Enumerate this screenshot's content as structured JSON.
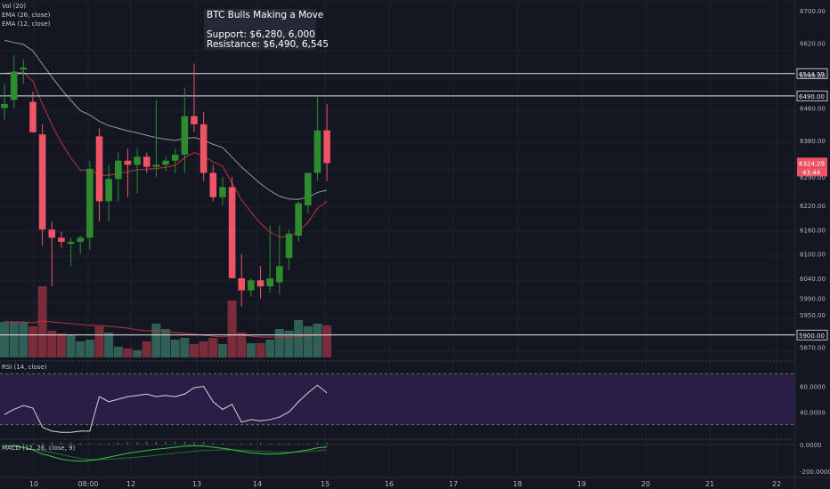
{
  "indicators": {
    "vol": "Vol (20)",
    "ema26": "EMA (26, close)",
    "ema12": "EMA (12, close)",
    "rsi": "RSI (14, close)",
    "macd": "MACD (12, 26, close, 9)"
  },
  "annotation": {
    "title": "BTC Bulls Making a Move",
    "support": "Support: $6,280, 6,000",
    "resistance": "Resistance: $6,490, 6,545"
  },
  "colors": {
    "background": "#131722",
    "up": "#2e8b2e",
    "down": "#ef5365",
    "ema26": "#9598a1",
    "ema12": "#c3323c",
    "rsi_band": "#2a1e45",
    "macd_line": "#3ec43e",
    "signal_line": "#2a6b2a"
  },
  "chart_data": [
    {
      "type": "candlestick",
      "title": "",
      "x_tick_labels": [
        "10",
        "08:00",
        "12",
        "13",
        "14",
        "15",
        "16",
        "17",
        "18",
        "19",
        "20",
        "21",
        "22"
      ],
      "y_tick_labels": [
        "6700.00",
        "6620.00",
        "6540.00",
        "6460.00",
        "6380.00",
        "6290.00",
        "6220.00",
        "6160.00",
        "6100.00",
        "6040.00",
        "5990.00",
        "5950.00",
        "5910.00",
        "5870.00"
      ],
      "ylim": [
        5860,
        6720
      ],
      "horizontal_levels": [
        {
          "value": 6544.99,
          "label": "6544.99"
        },
        {
          "value": 6490.0,
          "label": "6490.00"
        },
        {
          "value": 5900.0,
          "label": "5900.00"
        }
      ],
      "last_price": {
        "value": 6324.29,
        "label": "6324.29",
        "countdown": "43:44"
      },
      "candles": [
        {
          "o": 6460,
          "h": 6520,
          "l": 6430,
          "c": 6470
        },
        {
          "o": 6480,
          "h": 6590,
          "l": 6460,
          "c": 6550
        },
        {
          "o": 6555,
          "h": 6580,
          "l": 6520,
          "c": 6560
        },
        {
          "o": 6475,
          "h": 6500,
          "l": 6400,
          "c": 6400
        },
        {
          "o": 6395,
          "h": 6420,
          "l": 6120,
          "c": 6160
        },
        {
          "o": 6160,
          "h": 6180,
          "l": 6020,
          "c": 6140
        },
        {
          "o": 6140,
          "h": 6155,
          "l": 6115,
          "c": 6130
        },
        {
          "o": 6125,
          "h": 6140,
          "l": 6070,
          "c": 6130
        },
        {
          "o": 6130,
          "h": 6145,
          "l": 6100,
          "c": 6140
        },
        {
          "o": 6140,
          "h": 6330,
          "l": 6110,
          "c": 6310
        },
        {
          "o": 6390,
          "h": 6410,
          "l": 6180,
          "c": 6230
        },
        {
          "o": 6230,
          "h": 6320,
          "l": 6180,
          "c": 6285
        },
        {
          "o": 6285,
          "h": 6350,
          "l": 6230,
          "c": 6330
        },
        {
          "o": 6330,
          "h": 6360,
          "l": 6240,
          "c": 6320
        },
        {
          "o": 6320,
          "h": 6360,
          "l": 6250,
          "c": 6340
        },
        {
          "o": 6340,
          "h": 6350,
          "l": 6300,
          "c": 6315
        },
        {
          "o": 6315,
          "h": 6480,
          "l": 6290,
          "c": 6320
        },
        {
          "o": 6320,
          "h": 6340,
          "l": 6305,
          "c": 6330
        },
        {
          "o": 6330,
          "h": 6360,
          "l": 6300,
          "c": 6345
        },
        {
          "o": 6345,
          "h": 6510,
          "l": 6300,
          "c": 6440
        },
        {
          "o": 6440,
          "h": 6570,
          "l": 6400,
          "c": 6420
        },
        {
          "o": 6420,
          "h": 6450,
          "l": 6280,
          "c": 6300
        },
        {
          "o": 6300,
          "h": 6320,
          "l": 6230,
          "c": 6240
        },
        {
          "o": 6240,
          "h": 6290,
          "l": 6220,
          "c": 6265
        },
        {
          "o": 6265,
          "h": 6290,
          "l": 6040,
          "c": 6040
        },
        {
          "o": 6040,
          "h": 6100,
          "l": 5970,
          "c": 6010
        },
        {
          "o": 6010,
          "h": 6040,
          "l": 5995,
          "c": 6035
        },
        {
          "o": 6035,
          "h": 6070,
          "l": 5990,
          "c": 6020
        },
        {
          "o": 6020,
          "h": 6170,
          "l": 6005,
          "c": 6040
        },
        {
          "o": 6030,
          "h": 6170,
          "l": 6000,
          "c": 6070
        },
        {
          "o": 6090,
          "h": 6160,
          "l": 6060,
          "c": 6150
        },
        {
          "o": 6145,
          "h": 6230,
          "l": 6130,
          "c": 6225
        },
        {
          "o": 6220,
          "h": 6300,
          "l": 6200,
          "c": 6300
        },
        {
          "o": 6300,
          "h": 6490,
          "l": 6280,
          "c": 6405
        },
        {
          "o": 6405,
          "h": 6470,
          "l": 6280,
          "c": 6324
        }
      ]
    },
    {
      "type": "bar",
      "title": "Vol (20)",
      "values": [
        40,
        40,
        40,
        35,
        80,
        30,
        27,
        25,
        18,
        20,
        35,
        28,
        12,
        10,
        8,
        18,
        38,
        32,
        20,
        22,
        15,
        18,
        22,
        15,
        64,
        28,
        16,
        16,
        20,
        32,
        30,
        42,
        35,
        38,
        36
      ],
      "ma_values": [
        40,
        40,
        40,
        39,
        41,
        40,
        39,
        38,
        37,
        36,
        36,
        35,
        34,
        33,
        31,
        30,
        30,
        29,
        28,
        27,
        26,
        25,
        24,
        23,
        25,
        25,
        24,
        23,
        23,
        23,
        23,
        24,
        24,
        25,
        25
      ]
    },
    {
      "type": "line",
      "title": "RSI (14, close)",
      "y_tick_labels": [
        "60.0000",
        "40.0000"
      ],
      "ylim": [
        20,
        80
      ],
      "band": [
        30,
        70
      ],
      "values": [
        38,
        42,
        45,
        43,
        28,
        25,
        24,
        24,
        25,
        25,
        52,
        48,
        50,
        52,
        53,
        54,
        52,
        53,
        52,
        54,
        59,
        60,
        48,
        42,
        46,
        32,
        34,
        33,
        34,
        36,
        40,
        48,
        55,
        61,
        55
      ]
    },
    {
      "type": "line",
      "title": "MACD (12, 26, close, 9)",
      "y_tick_labels": [
        "0.0000",
        "-200.0000"
      ],
      "ylim": [
        -240,
        40
      ],
      "series": [
        {
          "values": [
            -10,
            -10,
            -20,
            -40,
            -70,
            -90,
            -110,
            -120,
            -125,
            -120,
            -110,
            -95,
            -80,
            -65,
            -55,
            -45,
            -35,
            -28,
            -20,
            -12,
            -8,
            -12,
            -20,
            -28,
            -38,
            -52,
            -62,
            -68,
            -72,
            -70,
            -62,
            -52,
            -40,
            -25,
            -18
          ]
        },
        {
          "values": [
            -10,
            -15,
            -25,
            -35,
            -45,
            -60,
            -75,
            -90,
            -105,
            -112,
            -112,
            -110,
            -105,
            -100,
            -95,
            -88,
            -80,
            -72,
            -65,
            -58,
            -50,
            -45,
            -42,
            -40,
            -40,
            -42,
            -45,
            -50,
            -55,
            -58,
            -58,
            -56,
            -52,
            -46,
            -40
          ]
        }
      ]
    }
  ]
}
